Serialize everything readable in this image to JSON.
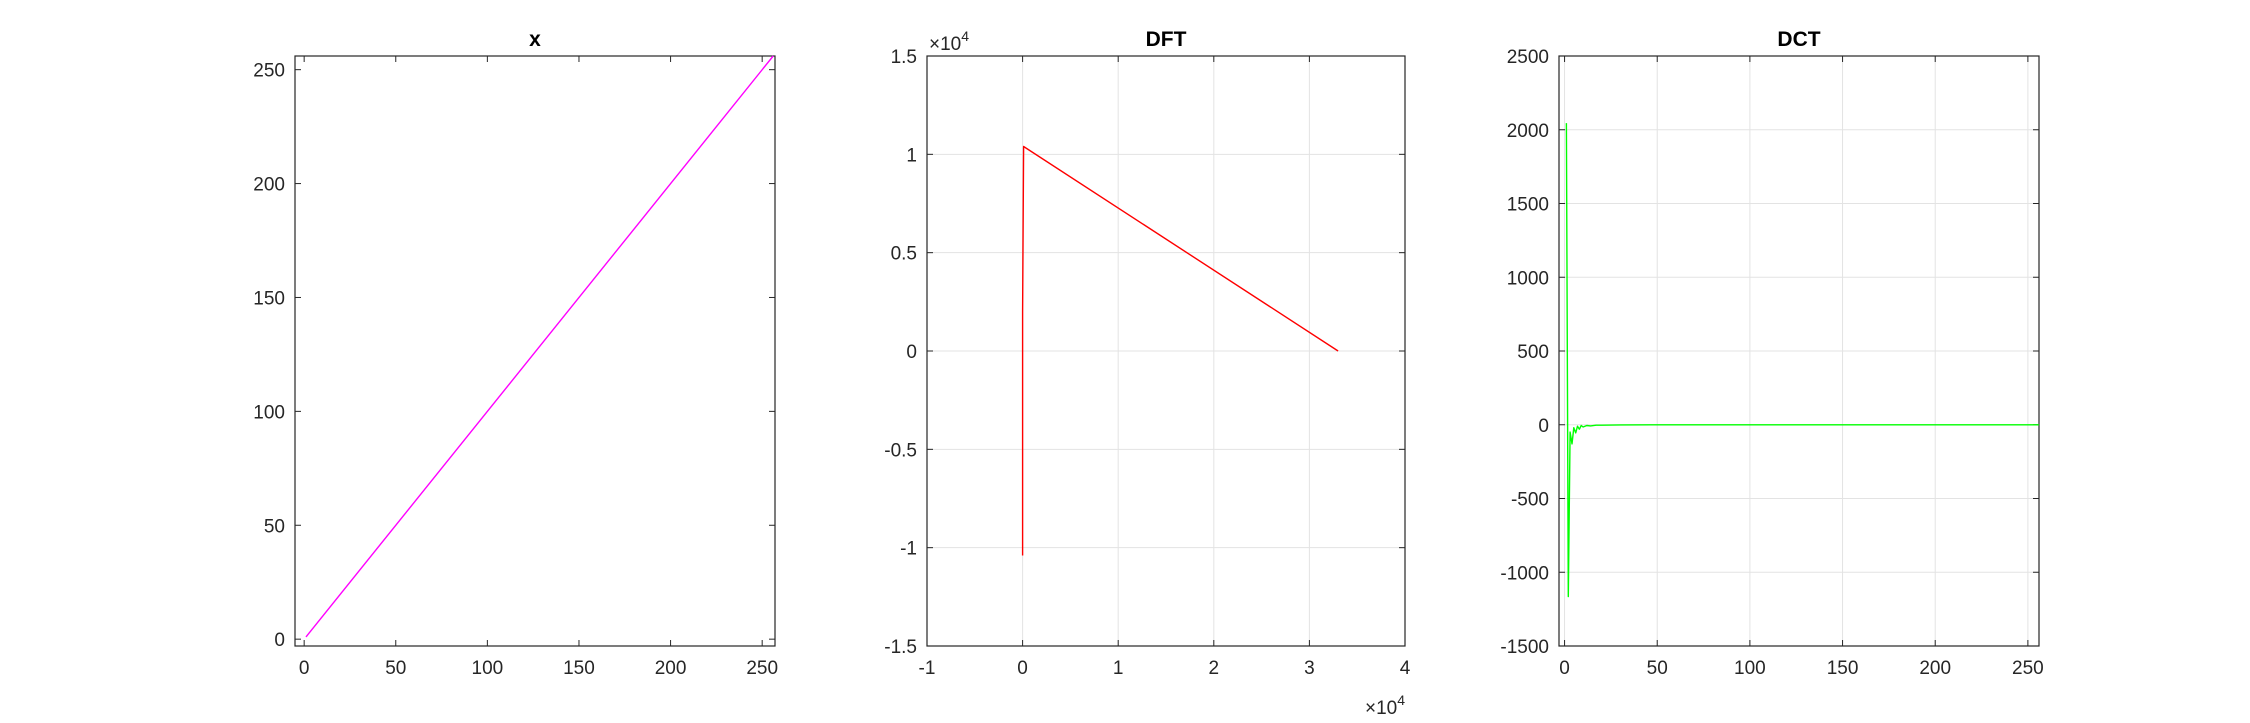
{
  "chart_data": [
    {
      "type": "line",
      "title": "x",
      "xlabel": "",
      "ylabel": "",
      "xlim": [
        -5,
        257
      ],
      "ylim": [
        -3,
        256
      ],
      "xticks": [
        0,
        50,
        100,
        150,
        200,
        250
      ],
      "yticks": [
        0,
        50,
        100,
        150,
        200,
        250
      ],
      "xtick_labels": [
        "0",
        "50",
        "100",
        "150",
        "200",
        "250"
      ],
      "ytick_labels": [
        "0",
        "50",
        "100",
        "150",
        "200",
        "250"
      ],
      "grid": false,
      "color": "#ff00ff",
      "series": [
        {
          "x": [
            1,
            256
          ],
          "y": [
            1,
            256
          ]
        }
      ]
    },
    {
      "type": "line",
      "title": "DFT",
      "xlabel": "",
      "ylabel": "",
      "x_exponent_label": "×10^4",
      "y_exponent_label": "×10^4",
      "xlim": [
        -1,
        4
      ],
      "ylim": [
        -1.5,
        1.5
      ],
      "xticks": [
        -1,
        0,
        1,
        2,
        3,
        4
      ],
      "yticks": [
        -1.5,
        -1,
        -0.5,
        0,
        0.5,
        1,
        1.5
      ],
      "xtick_labels": [
        "-1",
        "0",
        "1",
        "2",
        "3",
        "4"
      ],
      "ytick_labels": [
        "-1.5",
        "-1",
        "-0.5",
        "0",
        "0.5",
        "1",
        "1.5"
      ],
      "grid": true,
      "color": "#ff0000",
      "series": [
        {
          "x": [
            0,
            0,
            0.01,
            3.3
          ],
          "y": [
            -1.04,
            0.2,
            1.04,
            0
          ]
        }
      ]
    },
    {
      "type": "line",
      "title": "DCT",
      "xlabel": "",
      "ylabel": "",
      "xlim": [
        -3,
        256
      ],
      "ylim": [
        -1500,
        2500
      ],
      "xticks": [
        0,
        50,
        100,
        150,
        200,
        250
      ],
      "yticks": [
        -1500,
        -1000,
        -500,
        0,
        500,
        1000,
        1500,
        2000,
        2500
      ],
      "xtick_labels": [
        "0",
        "50",
        "100",
        "150",
        "200",
        "250"
      ],
      "ytick_labels": [
        "-1500",
        "-1000",
        "-500",
        "0",
        "500",
        "1000",
        "1500",
        "2000",
        "2500"
      ],
      "grid": true,
      "color": "#00ff00",
      "series": [
        {
          "x": [
            1,
            2,
            3,
            4,
            5,
            6,
            7,
            8,
            9,
            10,
            12,
            14,
            17,
            20,
            30,
            60,
            100,
            150,
            200,
            256
          ],
          "y": [
            2045,
            -1165,
            -50,
            -130,
            -20,
            -55,
            -10,
            -30,
            -5,
            -15,
            -5,
            -8,
            -3,
            -3,
            -1,
            0,
            0,
            0,
            0,
            0
          ]
        }
      ]
    }
  ]
}
